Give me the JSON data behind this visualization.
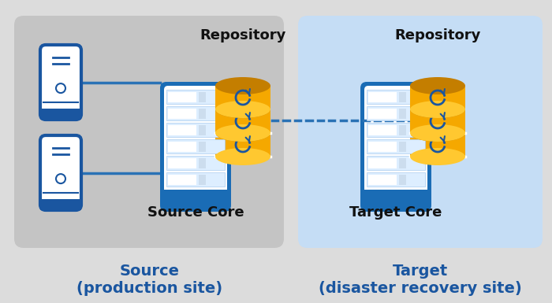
{
  "bg_color": "#dcdcdc",
  "source_box_color": "#c4c4c4",
  "target_box_color": "#c5ddf5",
  "title_color": "#1a56a0",
  "title_fontsize": 14,
  "label_fontsize": 13,
  "label_fontweight": "bold",
  "label_color": "#111111",
  "tower_color": "#1a56a0",
  "rack_color": "#1a6cb5",
  "cyl_color": "#f5a800",
  "cyl_dark": "#c47e00",
  "cyl_light": "#ffc830",
  "arrow_color": "#2a72b5",
  "source_title": "Source\n(production site)",
  "target_title": "Target\n(disaster recovery site)",
  "source_core_label": "Source Core",
  "target_core_label": "Target Core",
  "repository_label": "Repository"
}
